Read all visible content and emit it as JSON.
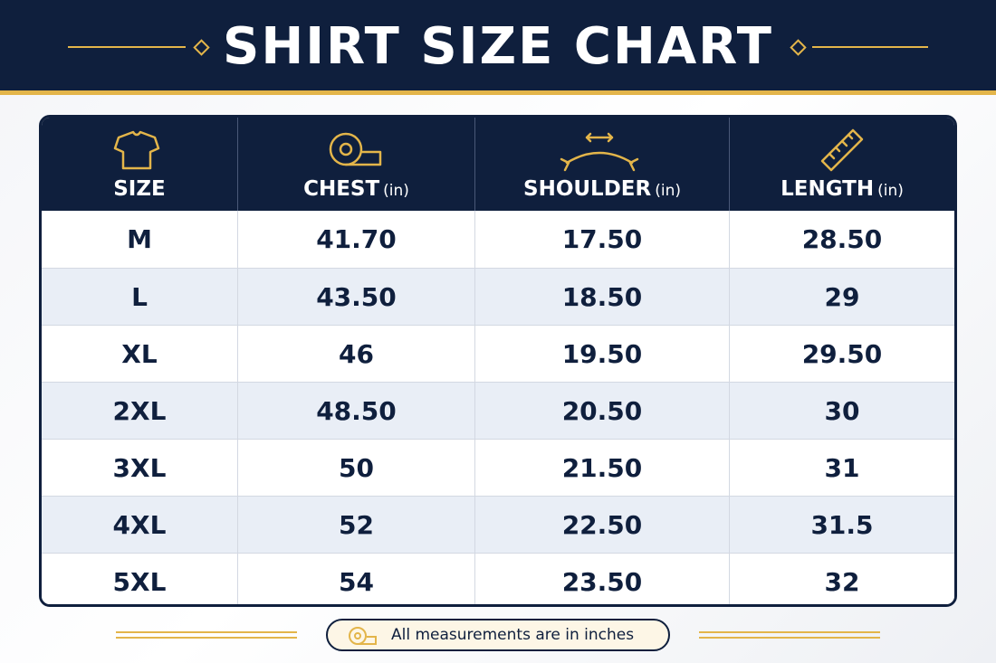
{
  "header": {
    "title": "SHIRT SIZE CHART"
  },
  "table": {
    "columns": [
      {
        "label": "SIZE"
      },
      {
        "label": "CHEST",
        "unit": "(in)"
      },
      {
        "label": "SHOULDER",
        "unit": "(in)"
      },
      {
        "label": "LENGTH",
        "unit": "(in)"
      }
    ],
    "rows": [
      [
        "M",
        "41.70",
        "17.50",
        "28.50"
      ],
      [
        "L",
        "43.50",
        "18.50",
        "29"
      ],
      [
        "XL",
        "46",
        "19.50",
        "29.50"
      ],
      [
        "2XL",
        "48.50",
        "20.50",
        "30"
      ],
      [
        "3XL",
        "50",
        "21.50",
        "31"
      ],
      [
        "4XL",
        "52",
        "22.50",
        "31.5"
      ],
      [
        "5XL",
        "54",
        "23.50",
        "32"
      ]
    ]
  },
  "footer": {
    "note": "All measurements are in inches"
  }
}
